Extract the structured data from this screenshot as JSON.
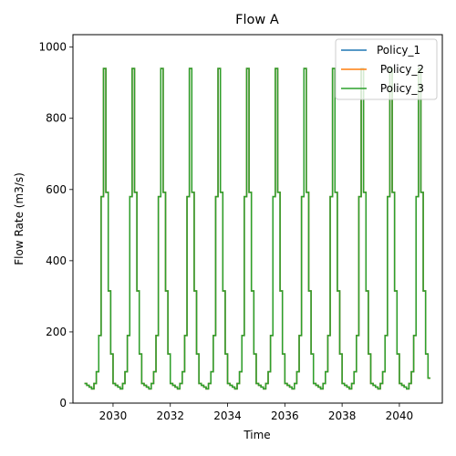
{
  "chart_data": {
    "type": "line",
    "title": "Flow A",
    "xlabel": "Time",
    "ylabel": "Flow Rate (m3/s)",
    "xlim": [
      2028.6,
      2041.5
    ],
    "ylim": [
      0,
      1035
    ],
    "xticks": [
      2030,
      2032,
      2034,
      2036,
      2038,
      2040
    ],
    "yticks": [
      0,
      200,
      400,
      600,
      800,
      1000
    ],
    "grid": false,
    "legend_position": "top-right",
    "monthly_pattern": [
      55,
      50,
      45,
      40,
      55,
      88,
      190,
      580,
      940,
      592,
      315,
      138,
      70
    ],
    "years": [
      2029,
      2030,
      2031,
      2032,
      2033,
      2034,
      2035,
      2036,
      2037,
      2038,
      2039,
      2040
    ],
    "series": [
      {
        "name": "Policy_1",
        "color": "#1f77b4"
      },
      {
        "name": " Policy_2",
        "color": "#ff7f0e"
      },
      {
        "name": " Policy_3",
        "color": "#2ca02c"
      }
    ]
  }
}
